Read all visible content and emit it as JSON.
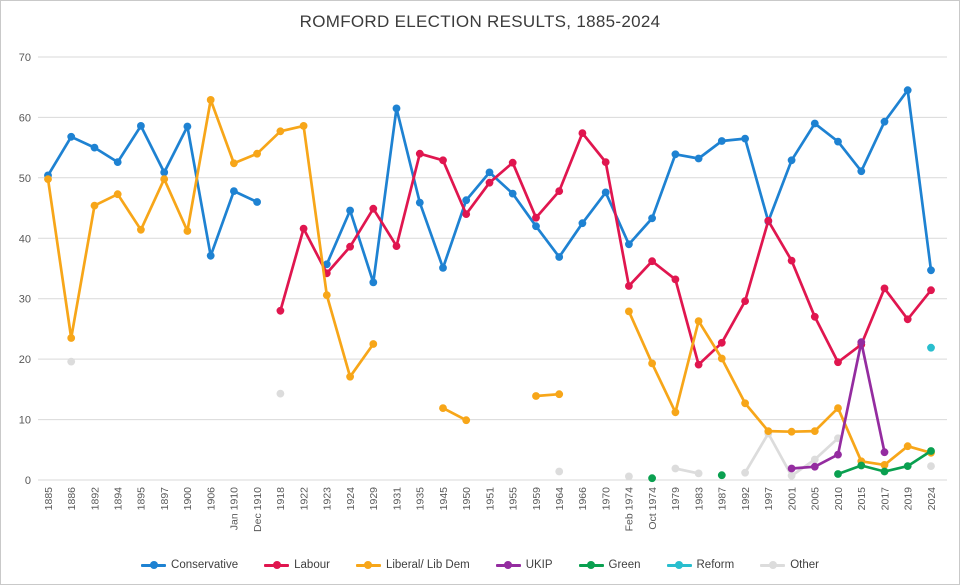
{
  "title": "ROMFORD ELECTION RESULTS, 1885-2024",
  "chart_data": {
    "type": "line",
    "title": "ROMFORD ELECTION RESULTS, 1885-2024",
    "xlabel": "",
    "ylabel": "",
    "ylim": [
      0,
      70
    ],
    "yticks": [
      0,
      10,
      20,
      30,
      40,
      50,
      60,
      70
    ],
    "grid": "horizontal",
    "legend_position": "bottom-center",
    "grid_color": "#D9D9D9",
    "tick_color": "#595959",
    "title_color": "#3B3B3B",
    "draw_order": [
      6,
      0,
      1,
      2,
      3,
      4,
      5
    ],
    "categories": [
      "1885",
      "1886",
      "1892",
      "1894",
      "1895",
      "1897",
      "1900",
      "1906",
      "Jan 1910",
      "Dec 1910",
      "1918",
      "1922",
      "1923",
      "1924",
      "1929",
      "1931",
      "1935",
      "1945",
      "1950",
      "1951",
      "1955",
      "1959",
      "1964",
      "1966",
      "1970",
      "Feb 1974",
      "Oct 1974",
      "1979",
      "1983",
      "1987",
      "1992",
      "1997",
      "2001",
      "2005",
      "2010",
      "2015",
      "2017",
      "2019",
      "2024"
    ],
    "series": [
      {
        "name": "Conservative",
        "color": "#1E82D2",
        "values": [
          50.4,
          56.8,
          55.0,
          52.6,
          58.6,
          50.9,
          58.5,
          37.1,
          47.8,
          46.0,
          null,
          null,
          35.7,
          44.6,
          32.7,
          61.5,
          45.9,
          35.1,
          46.3,
          50.9,
          47.4,
          42.0,
          36.9,
          42.5,
          47.6,
          39.0,
          43.3,
          53.9,
          53.2,
          56.1,
          56.5,
          42.8,
          52.9,
          59.0,
          56.0,
          51.1,
          59.3,
          64.5,
          34.7
        ]
      },
      {
        "name": "Labour",
        "color": "#E0164F",
        "values": [
          null,
          null,
          null,
          null,
          null,
          null,
          null,
          null,
          null,
          null,
          28.0,
          41.6,
          34.2,
          38.6,
          44.9,
          38.7,
          54.0,
          52.9,
          44.0,
          49.2,
          52.5,
          43.4,
          47.8,
          57.4,
          52.6,
          32.1,
          36.2,
          33.2,
          19.1,
          22.7,
          29.6,
          42.9,
          36.3,
          27.0,
          19.5,
          22.4,
          31.7,
          26.6,
          31.4
        ]
      },
      {
        "name": "Liberal/ Lib Dem",
        "color": "#F7A619",
        "values": [
          49.8,
          23.5,
          45.4,
          47.3,
          41.4,
          49.8,
          41.2,
          62.9,
          52.4,
          54.0,
          57.7,
          58.6,
          30.6,
          17.1,
          22.5,
          null,
          null,
          11.9,
          9.9,
          null,
          null,
          13.9,
          14.2,
          null,
          null,
          27.9,
          19.3,
          11.2,
          26.3,
          20.1,
          12.7,
          8.1,
          8.0,
          8.1,
          11.9,
          3.1,
          2.5,
          5.6,
          4.5
        ]
      },
      {
        "name": "UKIP",
        "color": "#942CA0",
        "values": [
          null,
          null,
          null,
          null,
          null,
          null,
          null,
          null,
          null,
          null,
          null,
          null,
          null,
          null,
          null,
          null,
          null,
          null,
          null,
          null,
          null,
          null,
          null,
          null,
          null,
          null,
          null,
          null,
          null,
          null,
          null,
          null,
          1.9,
          2.2,
          4.2,
          22.8,
          4.6,
          null,
          null
        ]
      },
      {
        "name": "Green",
        "color": "#0AA050",
        "values": [
          null,
          null,
          null,
          null,
          null,
          null,
          null,
          null,
          null,
          null,
          null,
          null,
          null,
          null,
          null,
          null,
          null,
          null,
          null,
          null,
          null,
          null,
          null,
          null,
          null,
          null,
          0.3,
          null,
          null,
          0.8,
          null,
          null,
          null,
          null,
          1.0,
          2.4,
          1.4,
          2.3,
          4.8
        ]
      },
      {
        "name": "Reform",
        "color": "#29BECE",
        "values": [
          null,
          null,
          null,
          null,
          null,
          null,
          null,
          null,
          null,
          null,
          null,
          null,
          null,
          null,
          null,
          null,
          null,
          null,
          null,
          null,
          null,
          null,
          null,
          null,
          null,
          null,
          null,
          null,
          null,
          null,
          null,
          null,
          null,
          null,
          null,
          null,
          null,
          null,
          21.9
        ]
      },
      {
        "name": "Other",
        "color": "#DCDCDC",
        "values": [
          null,
          19.6,
          null,
          null,
          null,
          null,
          null,
          null,
          null,
          null,
          14.3,
          null,
          null,
          null,
          null,
          null,
          null,
          null,
          null,
          null,
          null,
          null,
          1.4,
          null,
          null,
          0.6,
          null,
          1.9,
          1.1,
          null,
          1.2,
          7.7,
          0.7,
          3.4,
          6.9,
          null,
          null,
          null,
          2.3
        ]
      }
    ]
  }
}
